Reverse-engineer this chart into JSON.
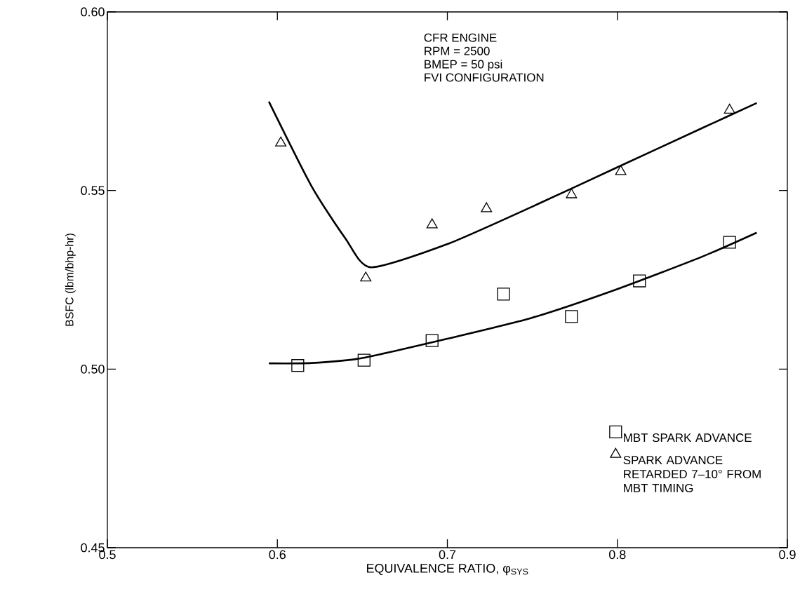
{
  "chart_data": {
    "type": "scatter",
    "xlabel": "EQUIVALENCE RATIO, φ$_{SYS}$",
    "ylabel": "BSFC (lbm/bhp-hr)",
    "annotations": [
      "CFR ENGINE",
      "RPM   = 2500",
      "BMEP  = 50 psi",
      "FVI CONFIGURATION"
    ],
    "xlim": [
      0.5,
      0.9
    ],
    "ylim": [
      0.45,
      0.6
    ],
    "xticks": [
      0.5,
      0.6,
      0.7,
      0.8,
      0.9
    ],
    "yticks": [
      0.45,
      {
        "value": 0.5,
        "label": "0.50"
      },
      0.55,
      {
        "value": 0.6,
        "label": "0.60"
      }
    ],
    "grid": false,
    "legend": "bottom right",
    "series": [
      {
        "name": "MBT SPARK ADVANCE",
        "marker": "square",
        "color": "#000000",
        "x": [
          0.612,
          0.651,
          0.691,
          0.733,
          0.773,
          0.813,
          0.866
        ],
        "values": [
          0.501,
          0.5025,
          0.508,
          0.521,
          0.5147,
          0.5247,
          0.5355
        ]
      },
      {
        "name": "SPARK ADVANCE RETARDED 7–10° FROM MBT TIMING",
        "marker": "triangle",
        "color": "#000000",
        "x": [
          0.602,
          0.652,
          0.691,
          0.723,
          0.773,
          0.802,
          0.866
        ],
        "values": [
          0.5633,
          0.5255,
          0.5404,
          0.5449,
          0.5488,
          0.5553,
          0.5725
        ]
      },
      {
        "type": "line",
        "marker": "none",
        "line_style": "solid",
        "color": "#000000",
        "x": [
          0.595,
          0.62,
          0.64,
          0.655,
          0.7,
          0.75,
          0.8,
          0.85,
          0.882
        ],
        "values": [
          0.5749,
          0.5513,
          0.5366,
          0.5285,
          0.535,
          0.5455,
          0.5565,
          0.5675,
          0.5745
        ]
      },
      {
        "type": "line",
        "marker": "none",
        "line_style": "solid",
        "color": "#000000",
        "x": [
          0.595,
          0.62,
          0.65,
          0.7,
          0.75,
          0.8,
          0.85,
          0.882
        ],
        "values": [
          0.5016,
          0.5017,
          0.5031,
          0.5085,
          0.5144,
          0.5224,
          0.5315,
          0.5382
        ]
      }
    ]
  }
}
